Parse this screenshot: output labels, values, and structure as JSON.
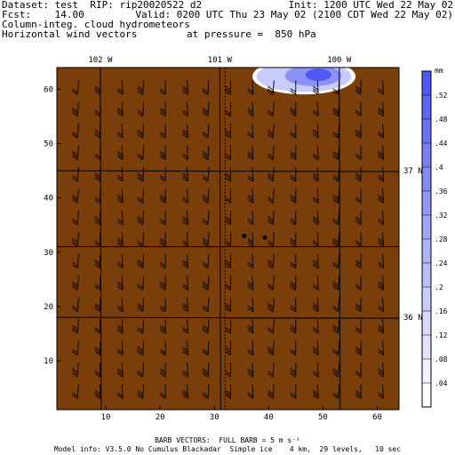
{
  "header": {
    "line1_left": "Dataset: test  RIP: rip20020522 d2",
    "line1_right": "Init: 1200 UTC Wed 22 May 02",
    "line2_left": "Fcst:    14.00",
    "line2_right": "Valid: 0200 UTC Thu 23 May 02 (2100 CDT Wed 22 May 02)",
    "line3_left": "Column-integ. cloud hydrometeors",
    "line4_left": "Horizontal wind vectors",
    "line4_mid": "at pressure =  850 hPa"
  },
  "footer": {
    "line1": "BARB VECTORS:  FULL BARB = 5 m s⁻¹",
    "line2": "Model info: V3.5.0 No Cumulus Blackadar  Simple ice    4 km,  29 levels,   10 sec"
  },
  "colors": {
    "terrain": "#7a3e0b",
    "barb": "#000000",
    "cloud": "#4f58f0",
    "scale_top": "#4f58f0"
  },
  "chart_data": {
    "type": "heatmap",
    "xlim": [
      1,
      64
    ],
    "ylim": [
      1,
      64
    ],
    "x_ticks": [
      10,
      20,
      30,
      40,
      50,
      60
    ],
    "y_ticks": [
      10,
      20,
      30,
      40,
      50,
      60
    ],
    "longitudes": [
      {
        "label": "102 W",
        "x": 9
      },
      {
        "label": "101 W",
        "x": 31
      },
      {
        "label": "100 W",
        "x": 53
      }
    ],
    "latitudes": [
      {
        "label": "37 N",
        "y": 45
      },
      {
        "label": "36 N",
        "y": 18
      }
    ],
    "county_lines_y": [
      31
    ],
    "county_lines_x": [
      31
    ],
    "points": [
      {
        "x": 35.5,
        "y": 33
      },
      {
        "x": 39.3,
        "y": 32.7
      }
    ],
    "cloud": {
      "x": [
        37,
        56
      ],
      "y": [
        61,
        65
      ],
      "max_mm": 0.52
    },
    "colorbar": {
      "unit": "mm",
      "levels": [
        ".04",
        ".08",
        ".12",
        ".16",
        ".2",
        ".24",
        ".28",
        ".32",
        ".36",
        ".4",
        ".44",
        ".48",
        ".52"
      ]
    },
    "wind_barbs": {
      "full_barb_ms": 5,
      "grid_x": [
        4,
        8,
        12,
        16,
        20,
        24,
        28,
        32,
        36,
        40,
        44,
        48,
        52,
        56,
        60
      ],
      "grid_y": [
        5,
        9,
        13,
        17,
        21,
        25,
        29,
        33,
        37,
        41,
        45,
        49,
        53,
        57,
        61
      ]
    }
  }
}
